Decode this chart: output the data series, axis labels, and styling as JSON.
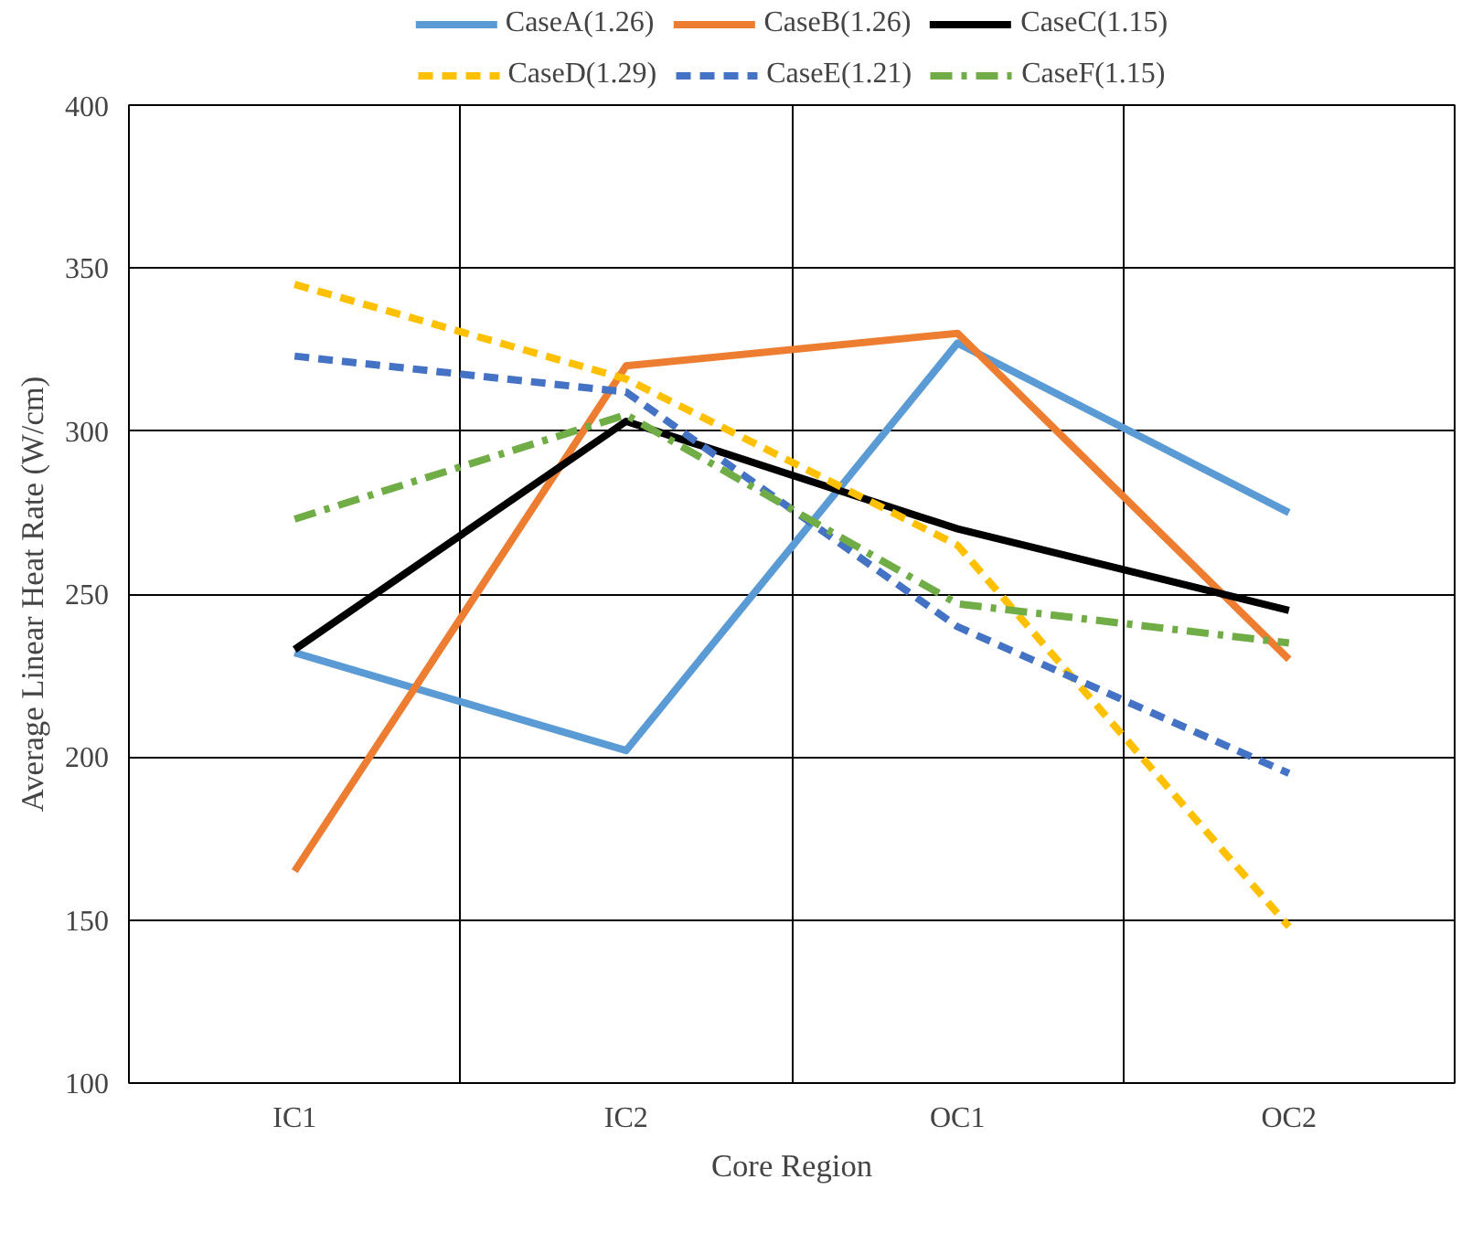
{
  "chart_data": {
    "type": "line",
    "xlabel": "Core Region",
    "ylabel": "Average Linear Heat Rate (W/cm)",
    "categories": [
      "IC1",
      "IC2",
      "OC1",
      "OC2"
    ],
    "ylim": [
      100,
      400
    ],
    "yticks": [
      100,
      150,
      200,
      250,
      300,
      350,
      400
    ],
    "grid": true,
    "legend": "top",
    "marker": "none",
    "series": [
      {
        "name": "CaseA(1.26)",
        "color": "#5b9bd5",
        "line_style": "solid",
        "values": [
          232,
          202,
          327,
          275
        ]
      },
      {
        "name": "CaseB(1.26)",
        "color": "#ed7d31",
        "line_style": "solid",
        "values": [
          165,
          320,
          330,
          230
        ]
      },
      {
        "name": "CaseC(1.15)",
        "color": "#000000",
        "line_style": "solid",
        "values": [
          233,
          303,
          270,
          245
        ]
      },
      {
        "name": "CaseD(1.29)",
        "color": "#ffc000",
        "line_style": "dashed",
        "values": [
          345,
          316,
          265,
          148
        ]
      },
      {
        "name": "CaseE(1.21)",
        "color": "#4472c4",
        "line_style": "dashed",
        "values": [
          323,
          312,
          240,
          195
        ]
      },
      {
        "name": "CaseF(1.15)",
        "color": "#70ad47",
        "line_style": "dashdot",
        "values": [
          273,
          305,
          247,
          235
        ]
      }
    ]
  }
}
